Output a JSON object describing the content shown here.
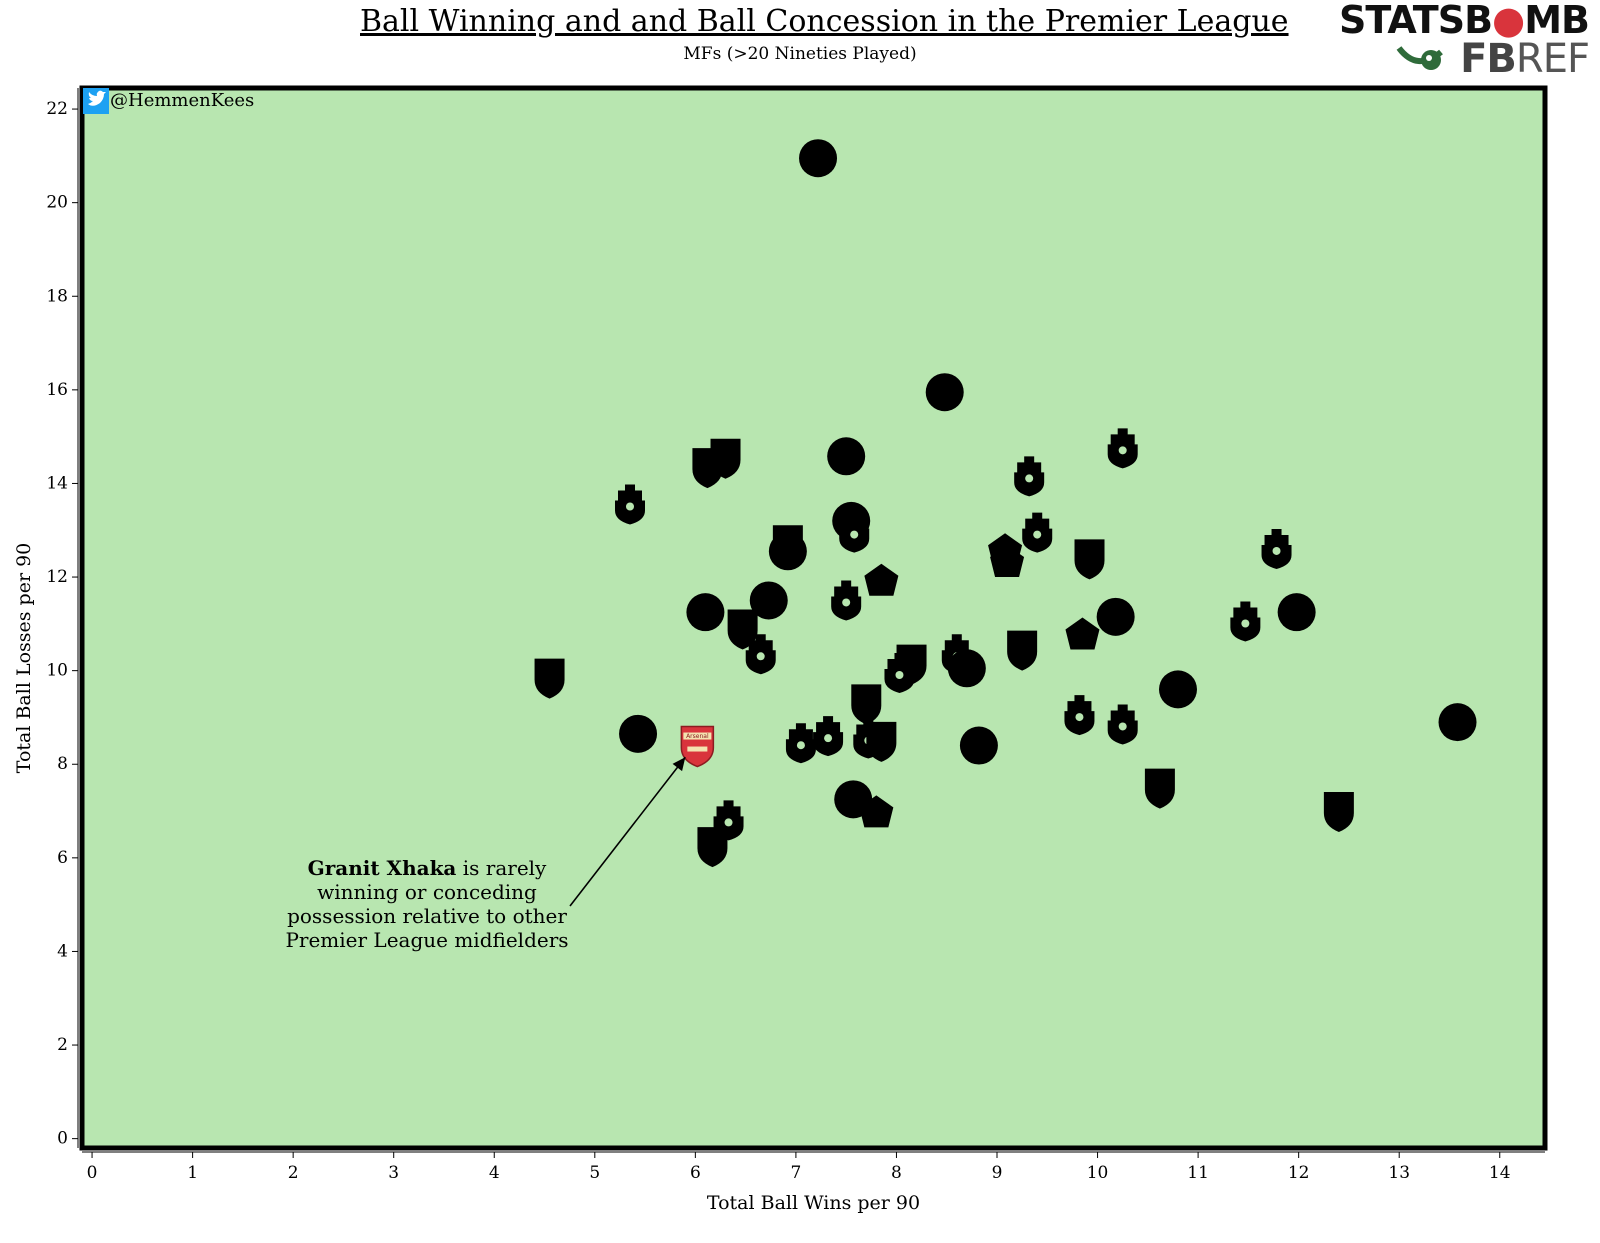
{
  "chart_data": {
    "type": "scatter",
    "title": "Ball Winning and and Ball Concession in the Premier League",
    "subtitle": "MFs (>20 Nineties Played)",
    "xlabel": "Total Ball Wins per 90",
    "ylabel": "Total Ball Losses per 90",
    "xlim": [
      -0.1,
      14.45
    ],
    "ylim": [
      -0.2,
      22.45
    ],
    "xticks": [
      "0",
      "1",
      "2",
      "3",
      "4",
      "5",
      "6",
      "7",
      "8",
      "9",
      "10",
      "11",
      "12",
      "13",
      "14"
    ],
    "yticks": [
      "0",
      "2",
      "4",
      "6",
      "8",
      "10",
      "12",
      "14",
      "16",
      "18",
      "20",
      "22"
    ],
    "grid": false,
    "background": "#b8e6b0",
    "marker_color": "#000000",
    "highlight_color": "#d9343c",
    "points": [
      {
        "x": 7.22,
        "y": 20.95,
        "shape": "circle"
      },
      {
        "x": 8.48,
        "y": 15.95,
        "shape": "circle"
      },
      {
        "x": 7.5,
        "y": 14.58,
        "shape": "circle"
      },
      {
        "x": 6.12,
        "y": 14.35,
        "shape": "shield"
      },
      {
        "x": 6.3,
        "y": 14.55,
        "shape": "shield"
      },
      {
        "x": 10.25,
        "y": 14.75,
        "shape": "crest"
      },
      {
        "x": 9.32,
        "y": 14.15,
        "shape": "crest"
      },
      {
        "x": 5.35,
        "y": 13.55,
        "shape": "crest"
      },
      {
        "x": 7.55,
        "y": 13.2,
        "shape": "circle"
      },
      {
        "x": 7.58,
        "y": 12.95,
        "shape": "crest"
      },
      {
        "x": 9.4,
        "y": 12.95,
        "shape": "crest"
      },
      {
        "x": 6.92,
        "y": 12.7,
        "shape": "shield"
      },
      {
        "x": 6.92,
        "y": 12.55,
        "shape": "circle"
      },
      {
        "x": 9.08,
        "y": 12.55,
        "shape": "badge"
      },
      {
        "x": 9.1,
        "y": 12.3,
        "shape": "badge"
      },
      {
        "x": 9.92,
        "y": 12.4,
        "shape": "shield"
      },
      {
        "x": 11.78,
        "y": 12.6,
        "shape": "crest"
      },
      {
        "x": 7.85,
        "y": 11.9,
        "shape": "badge"
      },
      {
        "x": 6.73,
        "y": 11.5,
        "shape": "circle"
      },
      {
        "x": 7.5,
        "y": 11.5,
        "shape": "crest"
      },
      {
        "x": 6.1,
        "y": 11.25,
        "shape": "circle"
      },
      {
        "x": 10.18,
        "y": 11.15,
        "shape": "circle"
      },
      {
        "x": 11.98,
        "y": 11.25,
        "shape": "circle"
      },
      {
        "x": 11.47,
        "y": 11.05,
        "shape": "crest"
      },
      {
        "x": 6.47,
        "y": 10.9,
        "shape": "shield"
      },
      {
        "x": 9.85,
        "y": 10.75,
        "shape": "badge"
      },
      {
        "x": 9.25,
        "y": 10.45,
        "shape": "shield"
      },
      {
        "x": 6.65,
        "y": 10.35,
        "shape": "crest"
      },
      {
        "x": 8.6,
        "y": 10.35,
        "shape": "crest"
      },
      {
        "x": 8.15,
        "y": 10.15,
        "shape": "shield"
      },
      {
        "x": 8.03,
        "y": 9.95,
        "shape": "crest"
      },
      {
        "x": 8.7,
        "y": 10.05,
        "shape": "circle"
      },
      {
        "x": 4.55,
        "y": 9.85,
        "shape": "shield"
      },
      {
        "x": 10.8,
        "y": 9.6,
        "shape": "circle"
      },
      {
        "x": 7.7,
        "y": 9.3,
        "shape": "shield"
      },
      {
        "x": 9.82,
        "y": 9.05,
        "shape": "crest"
      },
      {
        "x": 10.25,
        "y": 8.85,
        "shape": "crest"
      },
      {
        "x": 13.58,
        "y": 8.9,
        "shape": "circle"
      },
      {
        "x": 5.43,
        "y": 8.65,
        "shape": "circle"
      },
      {
        "x": 7.32,
        "y": 8.6,
        "shape": "crest"
      },
      {
        "x": 7.05,
        "y": 8.45,
        "shape": "crest"
      },
      {
        "x": 7.72,
        "y": 8.55,
        "shape": "crest"
      },
      {
        "x": 7.85,
        "y": 8.5,
        "shape": "shield"
      },
      {
        "x": 8.82,
        "y": 8.4,
        "shape": "circle"
      },
      {
        "x": 6.02,
        "y": 8.4,
        "shape": "highlight"
      },
      {
        "x": 10.62,
        "y": 7.5,
        "shape": "shield"
      },
      {
        "x": 7.57,
        "y": 7.25,
        "shape": "circle"
      },
      {
        "x": 7.8,
        "y": 6.95,
        "shape": "badge"
      },
      {
        "x": 12.4,
        "y": 7.0,
        "shape": "shield"
      },
      {
        "x": 6.33,
        "y": 6.8,
        "shape": "crest"
      },
      {
        "x": 6.17,
        "y": 6.25,
        "shape": "shield"
      }
    ],
    "annotation": {
      "bold": "Granit Xhaka",
      "lines": [
        "is rarely",
        "winning or conceding",
        "possession relative to other",
        "Premier League midfielders"
      ],
      "target": {
        "x": 5.9,
        "y": 8.15
      }
    },
    "arsenal_label": "Arsenal"
  },
  "twitter": {
    "handle": "@HemmenKees"
  },
  "brand": {
    "statsbomb_a": "STATSB",
    "statsbomb_b": "MB",
    "fbref_a": "FB",
    "fbref_b": "REF"
  }
}
